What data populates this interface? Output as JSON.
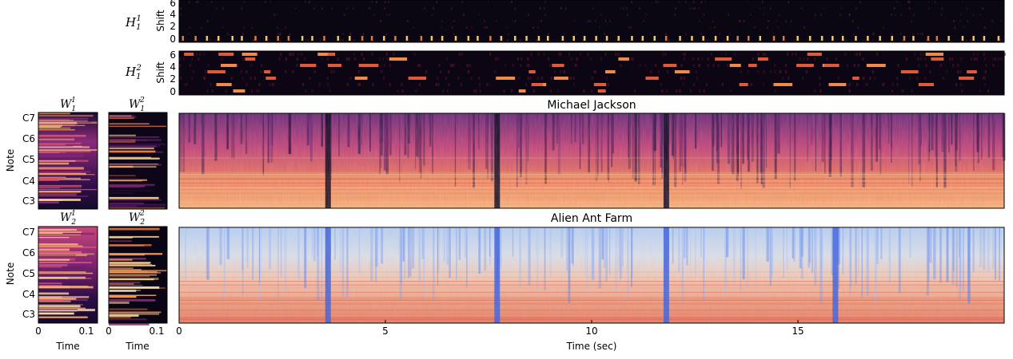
{
  "labels": {
    "h11": "H",
    "h11_sub": "1",
    "h11_sup": "1",
    "h12": "H",
    "h12_sub": "1",
    "h12_sup": "2",
    "shift": "Shift",
    "w11": "W",
    "w11_sub": "1",
    "w11_sup": "1",
    "w12": "W",
    "w12_sub": "1",
    "w12_sup": "2",
    "w21": "W",
    "w21_sub": "2",
    "w21_sup": "1",
    "w22": "W",
    "w22_sub": "2",
    "w22_sup": "2",
    "note": "Note",
    "time": "Time",
    "title_mj": "Michael Jackson",
    "title_aaf": "Alien Ant Farm"
  },
  "colors": {
    "magma_dark": "#0b0924",
    "magma_orange": "#f4845a",
    "coolwarm_blue": "#5b7fe6",
    "coolwarm_red": "#e0654f"
  },
  "chart_data": [
    {
      "type": "heatmap",
      "name": "H11",
      "ylabel": "Shift",
      "yticks": [
        "0",
        "2",
        "4",
        "6"
      ],
      "colormap": "magma",
      "dominant_row": 0
    },
    {
      "type": "heatmap",
      "name": "H12",
      "ylabel": "Shift",
      "yticks": [
        "0",
        "2",
        "4",
        "6"
      ],
      "colormap": "magma"
    },
    {
      "type": "heatmap",
      "name": "W11",
      "ylabel": "Note",
      "yticks": [
        "C3",
        "C4",
        "C5",
        "C6",
        "C7"
      ],
      "colormap": "magma"
    },
    {
      "type": "heatmap",
      "name": "W12",
      "colormap": "magma"
    },
    {
      "type": "heatmap",
      "name": "W21",
      "ylabel": "Note",
      "xlabel": "Time",
      "yticks": [
        "C3",
        "C4",
        "C5",
        "C6",
        "C7"
      ],
      "xticks": [
        "0",
        "0.1"
      ],
      "colormap": "magma"
    },
    {
      "type": "heatmap",
      "name": "W22",
      "xlabel": "Time",
      "xticks": [
        "0",
        "0.1"
      ],
      "colormap": "magma"
    },
    {
      "type": "heatmap",
      "name": "spectrogram-mj",
      "title": "Michael Jackson",
      "colormap": "magma",
      "xlim": [
        0,
        20
      ],
      "dark_columns_sec": [
        3.6,
        7.7,
        11.8
      ]
    },
    {
      "type": "heatmap",
      "name": "spectrogram-aaf",
      "title": "Alien Ant Farm",
      "colormap": "coolwarm",
      "xlabel": "Time (sec)",
      "xlim": [
        0,
        20
      ],
      "xticks": [
        "0",
        "5",
        "10",
        "15"
      ],
      "xtick_values": [
        0,
        5,
        10,
        15
      ],
      "dark_columns_sec": [
        3.6,
        7.7,
        11.8,
        15.9
      ]
    }
  ]
}
